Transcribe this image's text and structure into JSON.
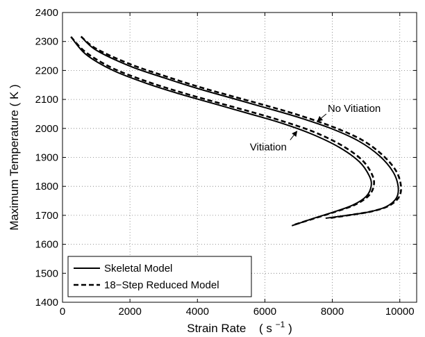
{
  "chart_data": {
    "type": "line",
    "xlabel": "Strain Rate",
    "xlabel_unit": {
      "open": "( s",
      "sup": "−1",
      "close": " )"
    },
    "ylabel": "Maximum Temperature   ( K )",
    "xlim": [
      0,
      10500
    ],
    "ylim": [
      1400,
      2400
    ],
    "xticks": [
      0,
      2000,
      4000,
      6000,
      8000,
      10000
    ],
    "yticks": [
      1400,
      1500,
      1600,
      1700,
      1800,
      1900,
      2000,
      2100,
      2200,
      2300,
      2400
    ],
    "grid": true,
    "legend_position": "bottom-left",
    "legend": [
      {
        "label": "Skeletal Model",
        "style": "solid"
      },
      {
        "label": "18−Step Reduced Model",
        "style": "dashed"
      }
    ],
    "annotations": [
      {
        "text": "No Vitiation",
        "arrow_from": [
          7820,
          2050
        ],
        "arrow_to": [
          7560,
          2025
        ]
      },
      {
        "text": "Vitiation",
        "arrow_from": [
          6750,
          1960
        ],
        "arrow_to": [
          6950,
          1990
        ]
      }
    ],
    "series": [
      {
        "case": "No Vitiation",
        "model": "Skeletal Model",
        "style": "solid",
        "x": [
          550,
          1000,
          2000,
          3000,
          4000,
          5000,
          6000,
          7000,
          8000,
          8800,
          9400,
          9800,
          9950,
          9900,
          9600,
          9100,
          8500,
          7800
        ],
        "y": [
          2317,
          2270,
          2215,
          2175,
          2138,
          2105,
          2072,
          2038,
          1998,
          1955,
          1905,
          1850,
          1800,
          1760,
          1730,
          1712,
          1701,
          1690
        ]
      },
      {
        "case": "No Vitiation",
        "model": "18−Step Reduced Model",
        "style": "dashed",
        "x": [
          550,
          1000,
          2000,
          3000,
          4000,
          5000,
          6000,
          7000,
          8000,
          8850,
          9450,
          9870,
          10030,
          9980,
          9680,
          9180,
          8580,
          7880
        ],
        "y": [
          2317,
          2275,
          2222,
          2182,
          2145,
          2112,
          2080,
          2046,
          2006,
          1962,
          1912,
          1857,
          1805,
          1764,
          1733,
          1714,
          1702,
          1690
        ]
      },
      {
        "case": "Vitiation",
        "model": "Skeletal Model",
        "style": "solid",
        "x": [
          250,
          700,
          1500,
          2500,
          3500,
          4500,
          5500,
          6500,
          7400,
          8200,
          8800,
          9100,
          9150,
          9000,
          8600,
          8000,
          7400,
          6800
        ],
        "y": [
          2316,
          2255,
          2200,
          2155,
          2118,
          2085,
          2052,
          2018,
          1980,
          1935,
          1885,
          1835,
          1800,
          1765,
          1735,
          1710,
          1688,
          1664
        ]
      },
      {
        "case": "Vitiation",
        "model": "18−Step Reduced Model",
        "style": "dashed",
        "x": [
          250,
          700,
          1500,
          2500,
          3500,
          4500,
          5500,
          6500,
          7450,
          8270,
          8880,
          9180,
          9230,
          9080,
          8680,
          8080,
          7480,
          6880
        ],
        "y": [
          2316,
          2262,
          2207,
          2162,
          2125,
          2092,
          2060,
          2026,
          1988,
          1942,
          1891,
          1840,
          1803,
          1768,
          1737,
          1712,
          1690,
          1668
        ]
      }
    ]
  }
}
